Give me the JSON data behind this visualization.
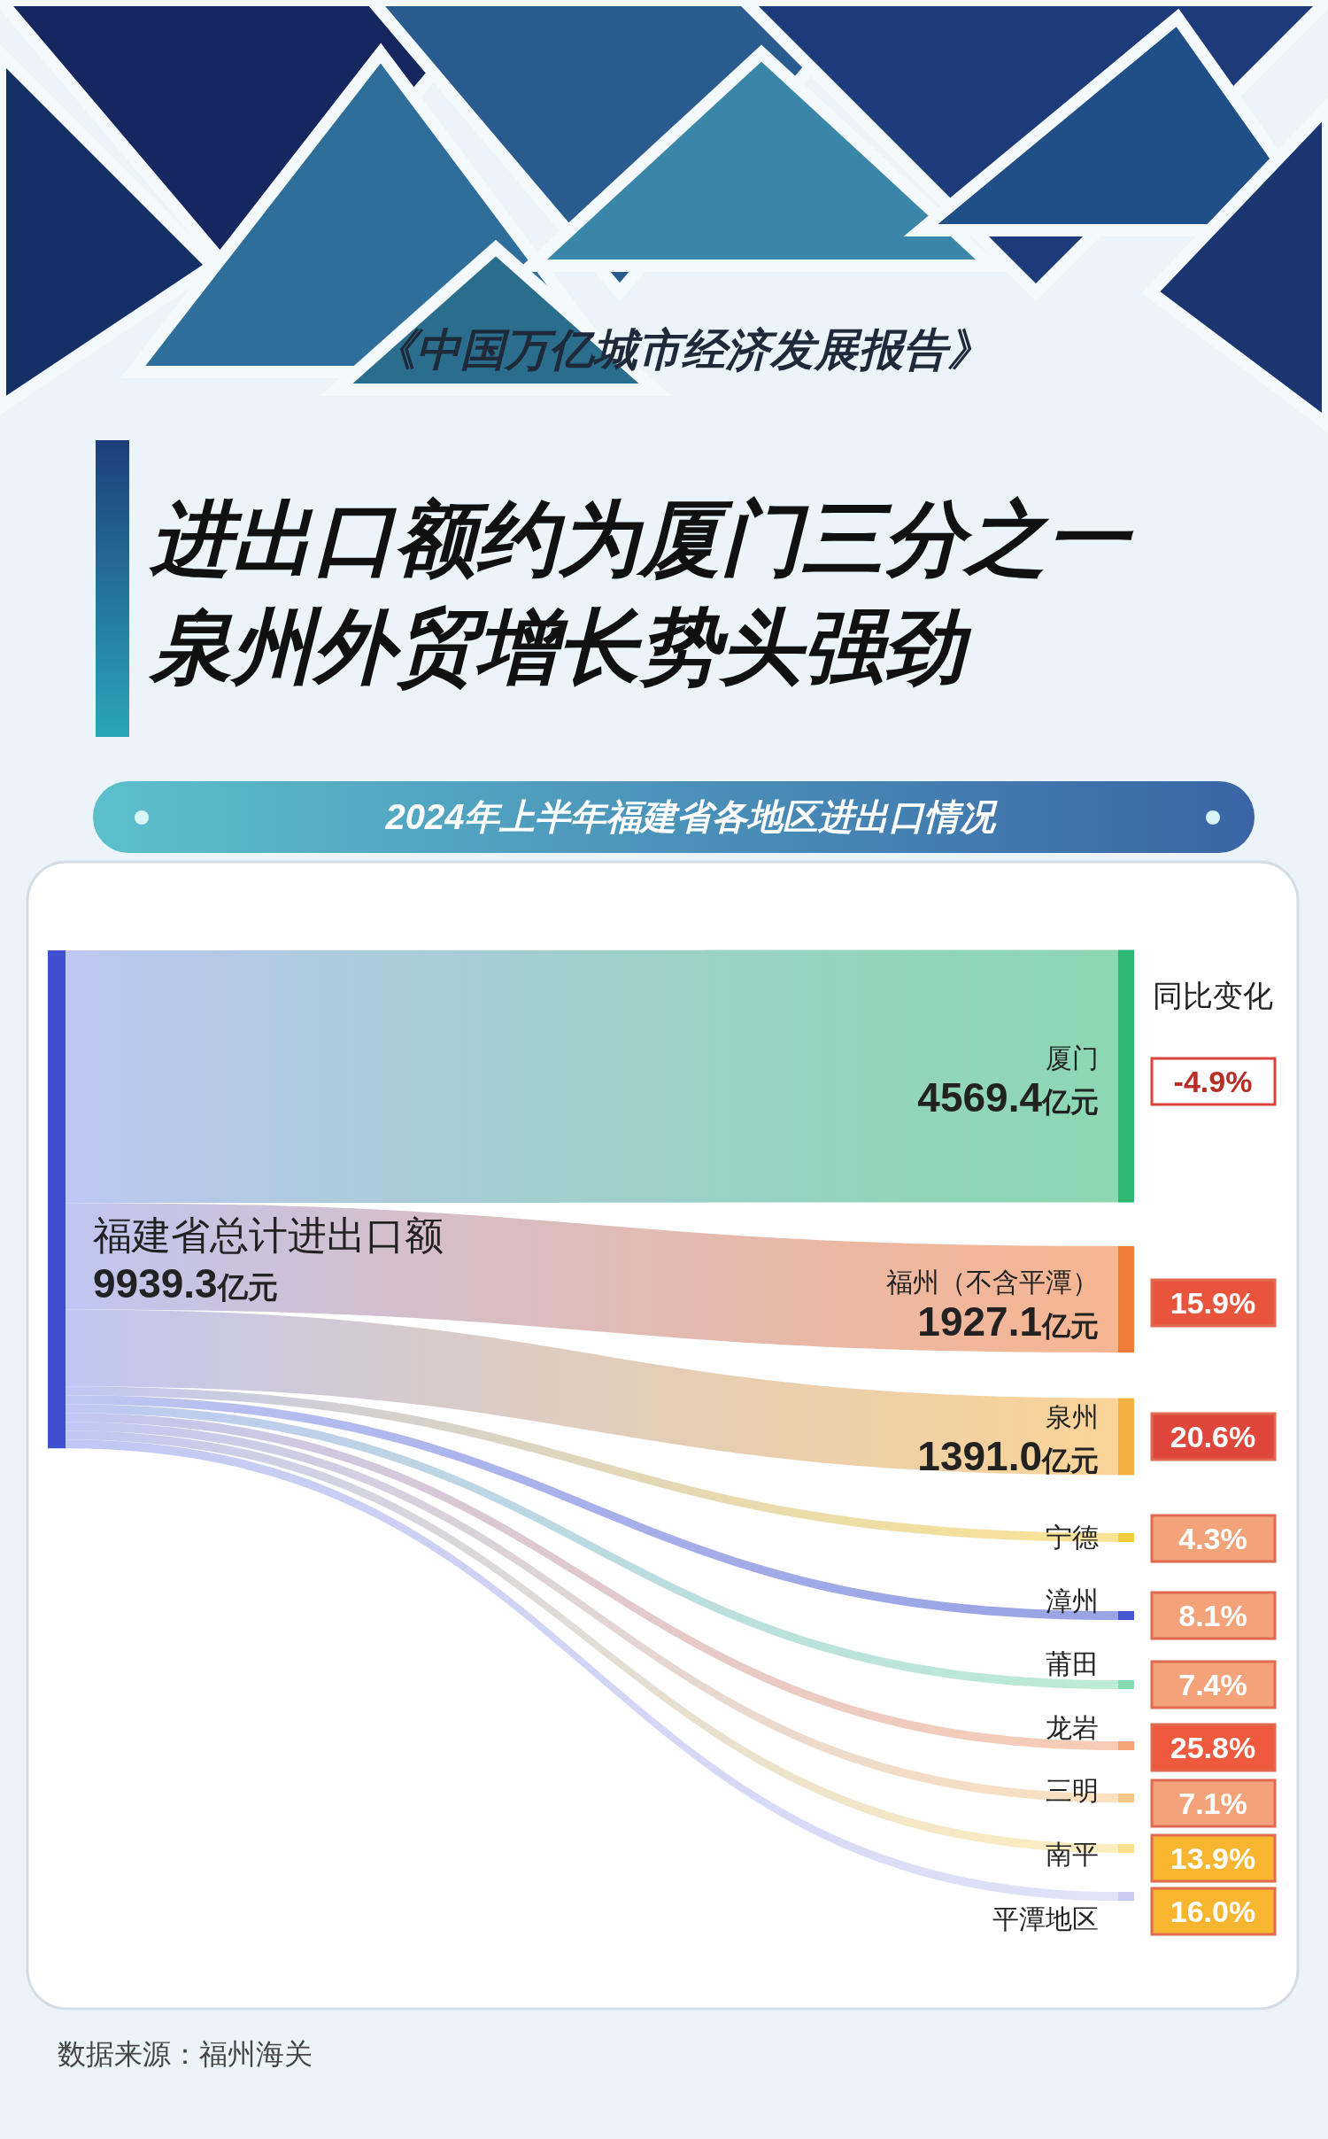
{
  "chart_data": {
    "type": "other",
    "title": "进出口额约为厦门三分之一泉州外贸增长势头强劲",
    "subtitle": "2024年上半年福建省各地区进出口情况",
    "categories": [
      "厦门",
      "福州（不含平潭）",
      "泉州",
      "宁德",
      "漳州",
      "莆田",
      "龙岩",
      "三明",
      "南平",
      "平潭地区"
    ],
    "series": [
      {
        "colors": [
          "#2fb874",
          "#f07a38",
          "#f5b043",
          "#f5cd3c",
          "#4658d0",
          "#86dbb4",
          "#f4a478",
          "#f9c98c",
          "#fbe08c",
          "#c9cbf2"
        ],
        "values": [
          4569.4,
          1927.1,
          1391.0,
          null,
          null,
          null,
          null,
          null,
          null,
          null
        ],
        "value_labels": [
          "4569.4亿元",
          "1927.1亿元",
          "1391.0亿元",
          null,
          null,
          null,
          null,
          null,
          null,
          null
        ]
      },
      {
        "name": "同比变化",
        "colors": [
          "#ffffff",
          "#e8553c",
          "#e0473c",
          "#f4a27a",
          "#f4a27a",
          "#f4a27a",
          "#ef5a3e",
          "#f4a27a",
          "#f8b52f",
          "#f8b52f"
        ],
        "values": [
          -4.9,
          15.9,
          20.6,
          4.3,
          8.1,
          7.4,
          25.8,
          7.1,
          13.9,
          16.0
        ],
        "value_labels": [
          "-4.9%",
          "15.9%",
          "20.6%",
          "4.3%",
          "8.1%",
          "7.4%",
          "25.8%",
          "7.1%",
          "13.9%",
          "16.0%"
        ]
      }
    ],
    "annotations": [
      "《中国万亿城市经济发展报告》",
      "福建省总计进出口额",
      "9939.3亿元",
      "数据来源：福州海关"
    ]
  }
}
